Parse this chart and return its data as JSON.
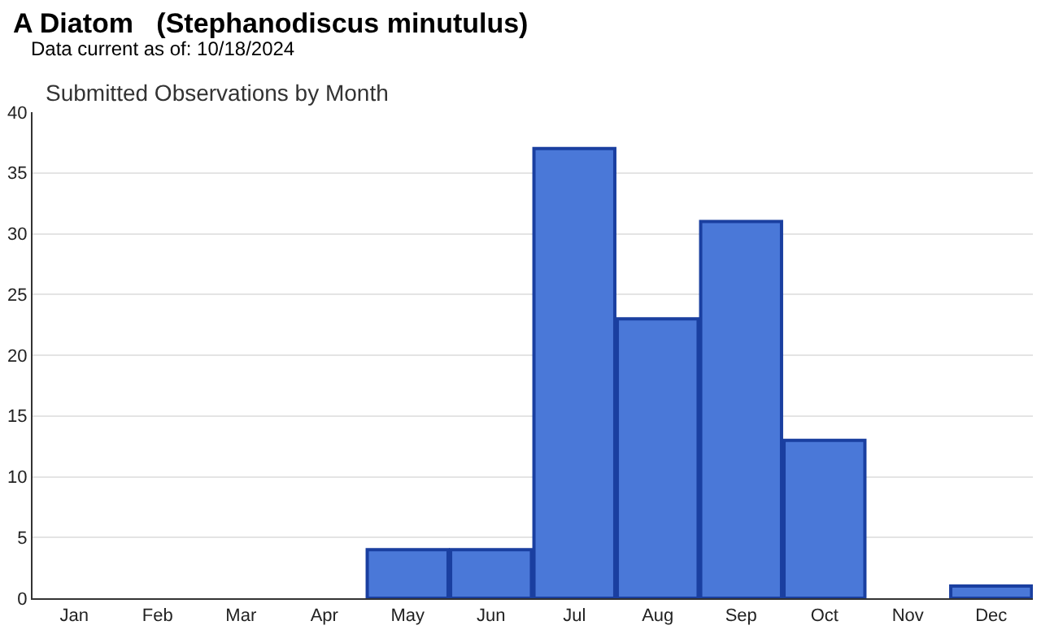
{
  "chart_data": {
    "type": "bar",
    "title": "A Diatom   (Stephanodiscus minutulus)",
    "subtitle": "Data current as of: 10/18/2024",
    "annotations": [
      "Submitted Observations by Month"
    ],
    "categories": [
      "Jan",
      "Feb",
      "Mar",
      "Apr",
      "May",
      "Jun",
      "Jul",
      "Aug",
      "Sep",
      "Oct",
      "Nov",
      "Dec"
    ],
    "values": [
      0,
      0,
      0,
      0,
      4,
      4,
      37,
      23,
      31,
      13,
      0,
      1
    ],
    "color": "#4a78d8",
    "ylim": [
      0,
      40
    ],
    "yticks": [
      0,
      5,
      10,
      15,
      20,
      25,
      30,
      35,
      40
    ],
    "grid": "y"
  }
}
